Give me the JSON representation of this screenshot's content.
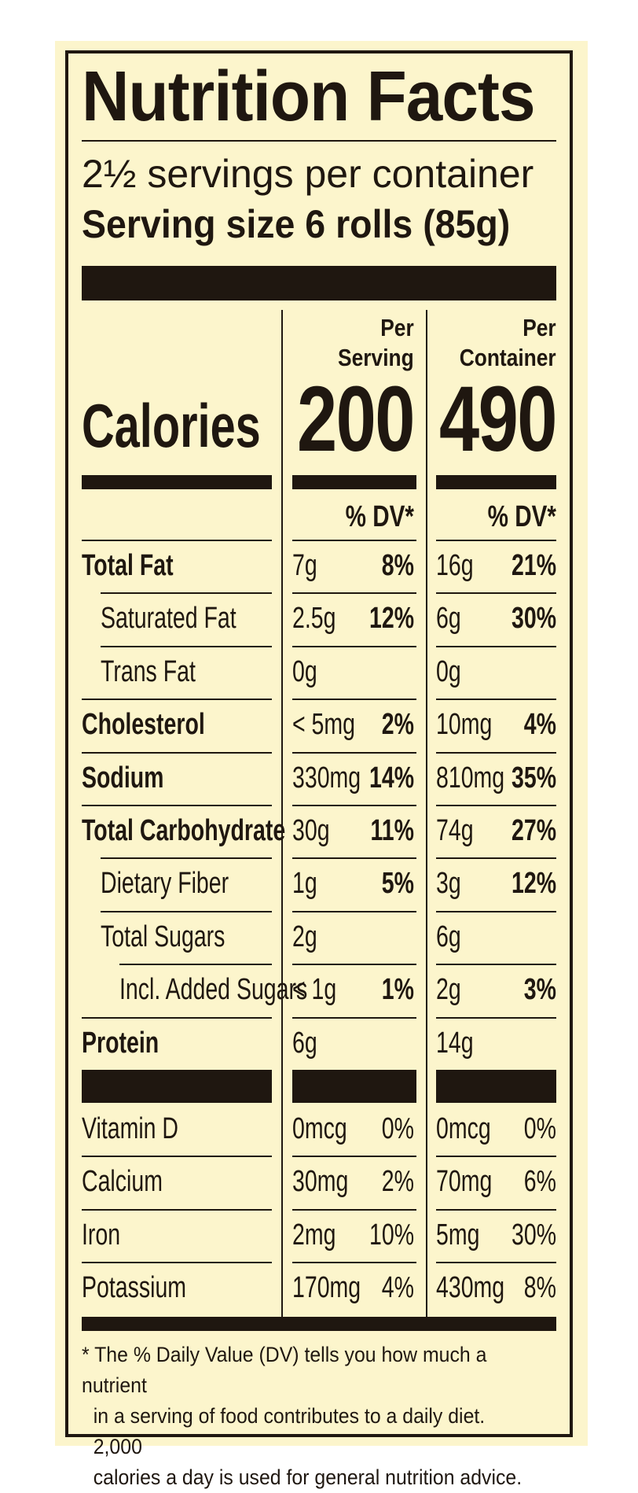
{
  "title": "Nutrition Facts",
  "servings_per_container": "2½ servings per container",
  "serving_size": "Serving size 6 rolls (85g)",
  "columns": {
    "serving_line1": "Per",
    "serving_line2": "Serving",
    "container_line1": "Per",
    "container_line2": "Container"
  },
  "calories": {
    "label": "Calories",
    "per_serving": "200",
    "per_container": "490"
  },
  "dv_header": "% DV*",
  "nutrients": [
    {
      "label": "Total Fat",
      "bold": true,
      "indent": 0,
      "serving_amount": "7g",
      "serving_dv": "8%",
      "container_amount": "16g",
      "container_dv": "21%"
    },
    {
      "label": "Saturated Fat",
      "bold": false,
      "indent": 1,
      "serving_amount": "2.5g",
      "serving_dv": "12%",
      "container_amount": "6g",
      "container_dv": "30%"
    },
    {
      "label": "Trans Fat",
      "bold": false,
      "indent": 1,
      "serving_amount": "0g",
      "serving_dv": "",
      "container_amount": "0g",
      "container_dv": ""
    },
    {
      "label": "Cholesterol",
      "bold": true,
      "indent": 0,
      "serving_amount": "< 5mg",
      "serving_dv": "2%",
      "container_amount": "10mg",
      "container_dv": "4%"
    },
    {
      "label": "Sodium",
      "bold": true,
      "indent": 0,
      "serving_amount": "330mg",
      "serving_dv": "14%",
      "container_amount": "810mg",
      "container_dv": "35%"
    },
    {
      "label": "Total Carbohydrate",
      "bold": true,
      "indent": 0,
      "serving_amount": "30g",
      "serving_dv": "11%",
      "container_amount": "74g",
      "container_dv": "27%"
    },
    {
      "label": "Dietary Fiber",
      "bold": false,
      "indent": 1,
      "serving_amount": "1g",
      "serving_dv": "5%",
      "container_amount": "3g",
      "container_dv": "12%"
    },
    {
      "label": "Total Sugars",
      "bold": false,
      "indent": 1,
      "serving_amount": "2g",
      "serving_dv": "",
      "container_amount": "6g",
      "container_dv": ""
    },
    {
      "label": "Incl. Added Sugars",
      "bold": false,
      "indent": 2,
      "serving_amount": "< 1g",
      "serving_dv": "1%",
      "container_amount": "2g",
      "container_dv": "3%"
    },
    {
      "label": "Protein",
      "bold": true,
      "indent": 0,
      "serving_amount": "6g",
      "serving_dv": "",
      "container_amount": "14g",
      "container_dv": ""
    }
  ],
  "vitamins": [
    {
      "label": "Vitamin D",
      "serving_amount": "0mcg",
      "serving_dv": "0%",
      "container_amount": "0mcg",
      "container_dv": "0%"
    },
    {
      "label": "Calcium",
      "serving_amount": "30mg",
      "serving_dv": "2%",
      "container_amount": "70mg",
      "container_dv": "6%"
    },
    {
      "label": "Iron",
      "serving_amount": "2mg",
      "serving_dv": "10%",
      "container_amount": "5mg",
      "container_dv": "30%"
    },
    {
      "label": "Potassium",
      "serving_amount": "170mg",
      "serving_dv": "4%",
      "container_amount": "430mg",
      "container_dv": "8%"
    }
  ],
  "footnote": {
    "line1": "* The % Daily Value (DV) tells you how much a nutrient",
    "line2": "in a serving of food contributes to a daily diet. 2,000",
    "line3": "calories a day is used for general nutrition advice."
  },
  "colors": {
    "background": "#fcf5cc",
    "ink": "#1f1710"
  }
}
